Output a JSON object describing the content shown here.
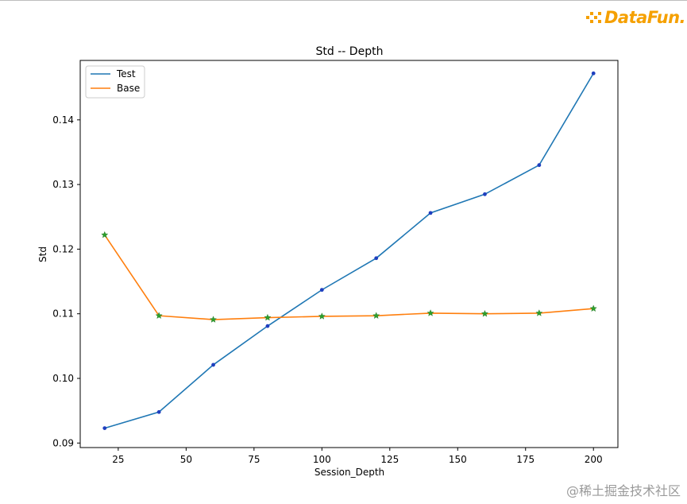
{
  "logo": {
    "text": "DataFun."
  },
  "watermark": "@稀土掘金技术社区",
  "chart_data": {
    "type": "line",
    "title": "Std -- Depth",
    "xlabel": "Session_Depth",
    "ylabel": "Std",
    "xlim": [
      11,
      209
    ],
    "ylim": [
      0.0893,
      0.1492
    ],
    "xticks": [
      25,
      50,
      75,
      100,
      125,
      150,
      175,
      200
    ],
    "yticks": [
      0.09,
      0.1,
      0.11,
      0.12,
      0.13,
      0.14
    ],
    "ytick_labels": [
      "0.09",
      "0.10",
      "0.11",
      "0.12",
      "0.13",
      "0.14"
    ],
    "x": [
      20,
      40,
      60,
      80,
      100,
      120,
      140,
      160,
      180,
      200
    ],
    "series": [
      {
        "name": "Test",
        "color": "#1f77b4",
        "marker": "dot",
        "values": [
          0.0923,
          0.0948,
          0.1021,
          0.1081,
          0.1137,
          0.1186,
          0.1256,
          0.1285,
          0.133,
          0.1472
        ]
      },
      {
        "name": "Base",
        "color": "#ff7f0e",
        "marker": "star",
        "marker_color": "#2ca02c",
        "values": [
          0.1222,
          0.1097,
          0.1091,
          0.1094,
          0.1096,
          0.1097,
          0.1101,
          0.11,
          0.1101,
          0.1108
        ]
      }
    ],
    "legend": {
      "position": "top-left"
    },
    "grid": false
  }
}
